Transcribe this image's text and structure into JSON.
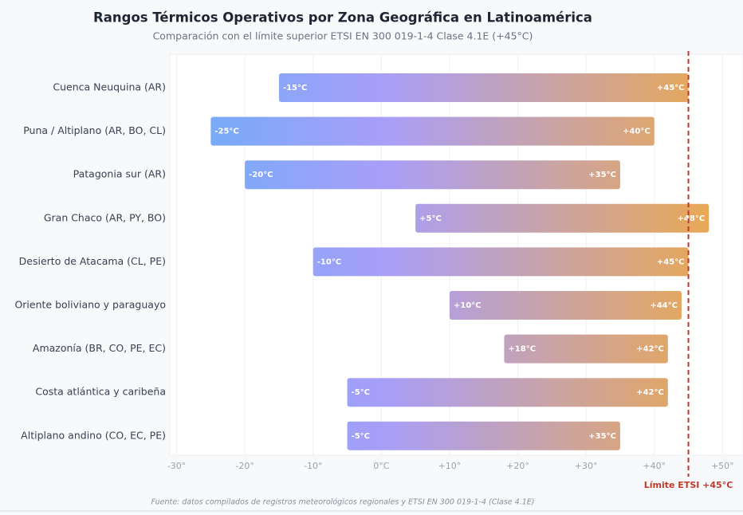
{
  "chart_data": {
    "type": "range-bar",
    "title": "Rangos Térmicos Operativos por Zona Geográfica en Latinoamérica",
    "subtitle": "Comparación con el límite superior ETSI EN 300 019-1-4 Clase 4.1E (+45°C)",
    "categories": [
      "Cuenca Neuquina (AR)",
      "Puna / Altiplano (AR, BO, CL)",
      "Patagonia sur (AR)",
      "Gran Chaco (AR, PY, BO)",
      "Desierto de Atacama (CL, PE)",
      "Oriente boliviano y paraguayo",
      "Amazonía (BR, CO, PE, EC)",
      "Costa atlántica y caribeña",
      "Altiplano andino (CO, EC, PE)"
    ],
    "values": [
      [
        -15,
        45
      ],
      [
        -25,
        40
      ],
      [
        -20,
        35
      ],
      [
        5,
        48
      ],
      [
        -10,
        45
      ],
      [
        10,
        44
      ],
      [
        18,
        42
      ],
      [
        -5,
        42
      ],
      [
        -5,
        35
      ]
    ],
    "value_labels": [
      [
        "-15°C",
        "+45°C"
      ],
      [
        "-25°C",
        "+40°C"
      ],
      [
        "-20°C",
        "+35°C"
      ],
      [
        "+5°C",
        "+48°C"
      ],
      [
        "-10°C",
        "+45°C"
      ],
      [
        "+10°C",
        "+44°C"
      ],
      [
        "+18°C",
        "+42°C"
      ],
      [
        "-5°C",
        "+42°C"
      ],
      [
        "-5°C",
        "+35°C"
      ]
    ],
    "colors": [
      "#7aaaf8",
      "#a99ef8",
      "#e9a853"
    ],
    "xlim": [
      -31,
      53
    ],
    "xticks": [
      {
        "value": -30,
        "label": "-30°"
      },
      {
        "value": -20,
        "label": "-20°"
      },
      {
        "value": -10,
        "label": "-10°"
      },
      {
        "value": 0,
        "label": "0°C"
      },
      {
        "value": 10,
        "label": "+10°"
      },
      {
        "value": 20,
        "label": "+20°"
      },
      {
        "value": 30,
        "label": "+30°"
      },
      {
        "value": 40,
        "label": "+40°"
      },
      {
        "value": 50,
        "label": "+50°"
      }
    ],
    "grid": true,
    "reference_line": {
      "value": 45,
      "label": "Límite ETSI +45°C",
      "color": "#c0392b"
    },
    "source": "Fuente: datos compilados de registros meteorológicos regionales y ETSI EN 300 019-1-4 (Clase 4.1E)"
  }
}
